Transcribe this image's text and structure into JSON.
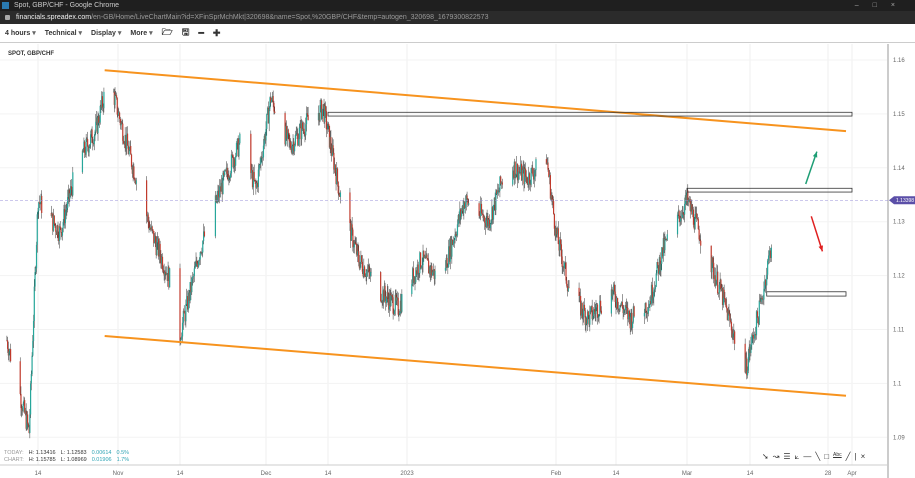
{
  "window": {
    "title": "Spot, GBP/CHF - Google Chrome",
    "url_domain": "financials.spreadex.com",
    "url_path": "/en-GB/Home/LiveChartMain?id=XFinSprMchMkt|320698&name=Spot,%20GBP/CHF&temp=autogen_320698_1679300822573"
  },
  "toolbar": {
    "interval": "4 hours",
    "technical": "Technical",
    "display": "Display",
    "more": "More",
    "icons": [
      "folder-open-icon",
      "save-icon",
      "zoom-out-icon",
      "zoom-in-icon"
    ]
  },
  "symbol": "SPOT, GBP/CHF",
  "stats": {
    "today_label": "TODAY:",
    "today_h": "H: 1.13416",
    "today_l": "L: 1.12583",
    "today_chg": "0.00614",
    "today_pct": "0.5%",
    "chart_label": "CHART:",
    "chart_h": "H: 1.15785",
    "chart_l": "L: 1.08969",
    "chart_chg": "0.01906",
    "chart_pct": "1.7%"
  },
  "colors": {
    "up": "#26a69a",
    "down": "#c0392b",
    "trendline": "#f7931e",
    "price_tag": "#5b4fa8",
    "arrow_up": "#1e9e75",
    "arrow_down": "#e02020"
  },
  "chart_data": {
    "type": "candlestick",
    "current_price": "1.13398",
    "ylim": [
      1.088,
      1.163
    ],
    "yticks": [
      "1.16",
      "1.15",
      "1.14",
      "1.13",
      "1.12",
      "1.11",
      "1.1",
      "1.09"
    ],
    "xticks": [
      {
        "date": "2022-10-14",
        "label": "14"
      },
      {
        "date": "2022-11-01",
        "label": "Nov"
      },
      {
        "date": "2022-11-14",
        "label": "14"
      },
      {
        "date": "2022-12-01",
        "label": "Dec"
      },
      {
        "date": "2022-12-14",
        "label": "14"
      },
      {
        "date": "2023-01-01",
        "label": "2023"
      },
      {
        "date": "2023-02-01",
        "label": "Feb"
      },
      {
        "date": "2023-02-14",
        "label": "14"
      },
      {
        "date": "2023-03-01",
        "label": "Mar"
      },
      {
        "date": "2023-03-14",
        "label": "14"
      },
      {
        "date": "2023-03-28",
        "label": "28"
      },
      {
        "date": "2023-04-01",
        "label": "Apr"
      }
    ],
    "price_path": [
      [
        "2022-10-07",
        1.108
      ],
      [
        "2022-10-12",
        1.091
      ],
      [
        "2022-10-14",
        1.134
      ],
      [
        "2022-10-19",
        1.128
      ],
      [
        "2022-10-23",
        1.141
      ],
      [
        "2022-10-27",
        1.147
      ],
      [
        "2022-10-30",
        1.157
      ],
      [
        "2022-11-02",
        1.147
      ],
      [
        "2022-11-08",
        1.128
      ],
      [
        "2022-11-12",
        1.119
      ],
      [
        "2022-11-14",
        1.109
      ],
      [
        "2022-11-18",
        1.125
      ],
      [
        "2022-11-22",
        1.136
      ],
      [
        "2022-11-26",
        1.145
      ],
      [
        "2022-11-29",
        1.136
      ],
      [
        "2022-12-02",
        1.153
      ],
      [
        "2022-12-06",
        1.144
      ],
      [
        "2022-12-10",
        1.149
      ],
      [
        "2022-12-13",
        1.151
      ],
      [
        "2022-12-17",
        1.134
      ],
      [
        "2022-12-21",
        1.123
      ],
      [
        "2022-12-26",
        1.117
      ],
      [
        "2022-12-30",
        1.114
      ],
      [
        "2023-01-04",
        1.123
      ],
      [
        "2023-01-08",
        1.119
      ],
      [
        "2023-01-13",
        1.134
      ],
      [
        "2023-01-18",
        1.13
      ],
      [
        "2023-01-22",
        1.141
      ],
      [
        "2023-01-26",
        1.138
      ],
      [
        "2023-01-30",
        1.142
      ],
      [
        "2023-02-01",
        1.128
      ],
      [
        "2023-02-04",
        1.117
      ],
      [
        "2023-02-08",
        1.112
      ],
      [
        "2023-02-13",
        1.117
      ],
      [
        "2023-02-17",
        1.112
      ],
      [
        "2023-02-21",
        1.115
      ],
      [
        "2023-02-24",
        1.125
      ],
      [
        "2023-03-01",
        1.134
      ],
      [
        "2023-03-04",
        1.127
      ],
      [
        "2023-03-08",
        1.117
      ],
      [
        "2023-03-13",
        1.102
      ],
      [
        "2023-03-16",
        1.115
      ],
      [
        "2023-03-18",
        1.127
      ],
      [
        "2023-03-20",
        1.131
      ]
    ],
    "trendlines": [
      {
        "from": [
          "2022-10-29",
          1.1581
        ],
        "to": [
          "2023-03-31",
          1.1468
        ]
      },
      {
        "from": [
          "2022-10-29",
          1.1088
        ],
        "to": [
          "2023-03-31",
          1.0977
        ]
      }
    ],
    "zones": [
      {
        "from": "2022-12-14",
        "to": "2023-04-01",
        "high": 1.1503,
        "low": 1.1496
      },
      {
        "from": "2023-03-01",
        "to": "2023-04-01",
        "high": 1.1362,
        "low": 1.1355
      },
      {
        "from": "2023-03-17",
        "to": "2023-03-31",
        "high": 1.117,
        "low": 1.1162
      }
    ],
    "arrows": [
      {
        "direction": "up",
        "from": [
          "2023-03-24",
          1.137
        ],
        "to": [
          "2023-03-26",
          1.143
        ]
      },
      {
        "direction": "down",
        "from": [
          "2023-03-25",
          1.131
        ],
        "to": [
          "2023-03-27",
          1.1245
        ]
      }
    ]
  },
  "drawing_tools": [
    "pointer-icon",
    "curve-icon",
    "fib-icon",
    "fan-icon",
    "hline-icon",
    "trendline-icon",
    "rectangle-icon",
    "text-icon",
    "line-icon",
    "separator",
    "close-icon"
  ]
}
